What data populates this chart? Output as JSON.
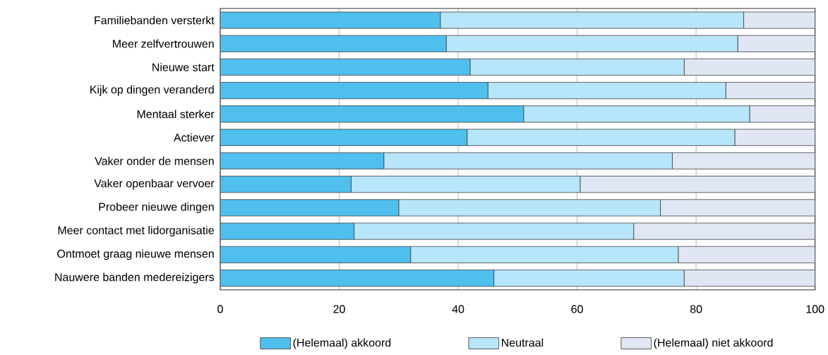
{
  "chart_data": {
    "type": "bar",
    "orientation": "horizontal",
    "stacked": true,
    "categories": [
      "Familiebanden versterkt",
      "Meer zelfvertrouwen",
      "Nieuwe start",
      "Kijk op dingen veranderd",
      "Mentaal sterker",
      "Actiever",
      "Vaker onder de mensen",
      "Vaker openbaar vervoer",
      "Probeer nieuwe dingen",
      "Meer contact met lidorganisatie",
      "Ontmoet graag nieuwe mensen",
      "Nauwere banden medereizigers"
    ],
    "series": [
      {
        "name": "(Helemaal) akkoord",
        "color": "#4fbfee",
        "values": [
          37,
          38,
          42,
          45,
          51,
          41.5,
          27.5,
          22,
          30,
          22.5,
          32,
          46
        ]
      },
      {
        "name": "Neutraal",
        "color": "#b7e5f9",
        "values": [
          51,
          49,
          36,
          40,
          38,
          45,
          48.5,
          38.5,
          44,
          47,
          45,
          32
        ]
      },
      {
        "name": "(Helemaal) niet akkoord",
        "color": "#e0e6f4",
        "values": [
          12,
          13,
          22,
          15,
          11,
          13.5,
          24,
          39.5,
          26,
          30.5,
          23,
          22
        ]
      }
    ],
    "xlim": [
      0,
      100
    ],
    "xticks": [
      0,
      20,
      40,
      60,
      80,
      100
    ],
    "grid": "x",
    "legend": "bottom"
  }
}
